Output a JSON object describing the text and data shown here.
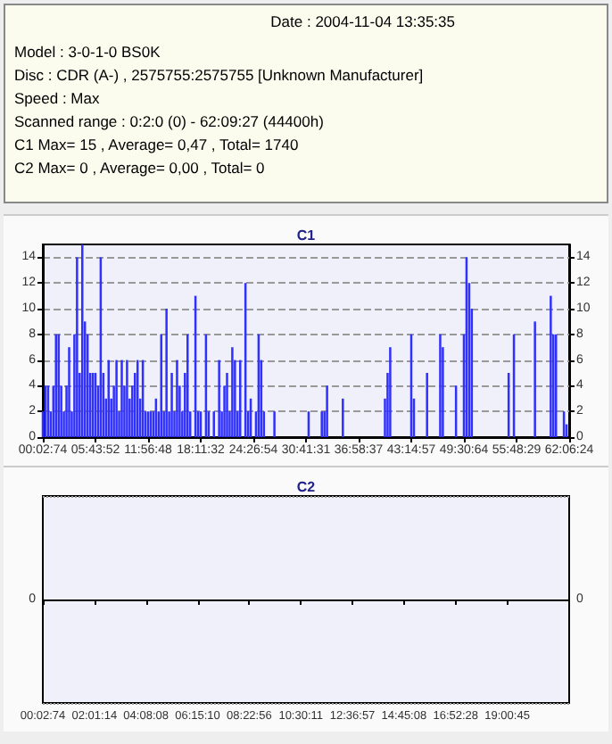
{
  "chart_data": [
    {
      "type": "other",
      "annotations": [
        "Date : 2004-11-04 13:35:35",
        "Model : 3-0-1-0 BS0K",
        "Disc : CDR (A-) , 2575755:2575755 [Unknown Manufacturer]",
        "Speed : Max",
        "Scanned range : 0:2:0 (0) - 62:09:27 (44400h)",
        "C1 Max= 15 , Average= 0,47 , Total= 1740",
        "C2 Max= 0 , Average= 0,00 , Total= 0"
      ]
    },
    {
      "type": "bar",
      "title": "C1",
      "color": "#3030ff",
      "grid": "y",
      "ylim": [
        0,
        15
      ],
      "yticks": [
        0,
        2,
        4,
        6,
        8,
        10,
        12,
        14
      ],
      "y2lim": [
        0,
        15
      ],
      "y2ticks": [
        0,
        2,
        4,
        6,
        8,
        10,
        12,
        14
      ],
      "categories": [
        "00:02:74",
        null,
        null,
        null,
        null,
        null,
        null,
        null,
        null,
        null,
        null,
        null,
        null,
        null,
        null,
        null,
        null,
        null,
        null,
        null,
        "05:43:52",
        null,
        null,
        null,
        null,
        null,
        null,
        null,
        null,
        null,
        null,
        null,
        null,
        null,
        null,
        null,
        null,
        null,
        null,
        null,
        "11:56:48",
        null,
        null,
        null,
        null,
        null,
        null,
        null,
        null,
        null,
        null,
        null,
        null,
        null,
        null,
        null,
        null,
        null,
        null,
        null,
        "18:11:32",
        null,
        null,
        null,
        null,
        null,
        null,
        null,
        null,
        null,
        null,
        null,
        null,
        null,
        null,
        null,
        null,
        null,
        null,
        null,
        "24:26:54",
        null,
        null,
        null,
        null,
        null,
        null,
        null,
        null,
        null,
        null,
        null,
        null,
        null,
        null,
        null,
        null,
        null,
        null,
        null,
        "30:41:31",
        null,
        null,
        null,
        null,
        null,
        null,
        null,
        null,
        null,
        null,
        null,
        null,
        null,
        null,
        null,
        null,
        null,
        null,
        null,
        "36:58:37",
        null,
        null,
        null,
        null,
        null,
        null,
        null,
        null,
        null,
        null,
        null,
        null,
        null,
        null,
        null,
        null,
        null,
        null,
        null,
        "43:14:57",
        null,
        null,
        null,
        null,
        null,
        null,
        null,
        null,
        null,
        null,
        null,
        null,
        null,
        null,
        null,
        null,
        null,
        null,
        null,
        "49:30:64",
        null,
        null,
        null,
        null,
        null,
        null,
        null,
        null,
        null,
        null,
        null,
        null,
        null,
        null,
        null,
        null,
        null,
        null,
        null,
        "55:48:29",
        null,
        null,
        null,
        null,
        null,
        null,
        null,
        null,
        null,
        null,
        null,
        null,
        null,
        null,
        null,
        null,
        null,
        null,
        null,
        "62:06:24"
      ],
      "values": [
        2,
        4,
        4,
        2,
        4,
        8,
        8,
        4,
        2,
        4,
        7,
        2,
        8,
        14,
        5,
        15,
        9,
        8,
        5,
        5,
        5,
        4,
        14,
        5,
        3,
        6,
        3,
        4,
        6,
        2,
        6,
        4,
        6,
        3,
        4,
        5,
        6,
        3,
        6,
        2,
        2,
        2,
        2,
        3,
        2,
        8,
        2,
        10,
        2,
        5,
        2,
        6,
        4,
        2,
        5,
        8,
        2,
        0,
        11,
        2,
        2,
        0,
        8,
        2,
        0,
        2,
        0,
        6,
        2,
        4,
        5,
        2,
        7,
        6,
        2,
        6,
        0,
        12,
        2,
        3,
        0,
        2,
        8,
        6,
        2,
        0,
        0,
        0,
        2,
        0,
        0,
        0,
        0,
        0,
        0,
        0,
        0,
        0,
        0,
        0,
        0,
        2,
        0,
        0,
        0,
        0,
        2,
        2,
        4,
        0,
        0,
        0,
        0,
        0,
        3,
        0,
        0,
        0,
        0,
        0,
        0,
        0,
        0,
        0,
        0,
        0,
        0,
        0,
        0,
        0,
        3,
        5,
        7,
        0,
        0,
        0,
        0,
        0,
        0,
        0,
        8,
        3,
        0,
        0,
        0,
        0,
        5,
        0,
        0,
        0,
        0,
        8,
        7,
        0,
        0,
        0,
        0,
        4,
        0,
        0,
        8,
        14,
        12,
        10,
        0,
        0,
        0,
        0,
        0,
        0,
        0,
        0,
        0,
        0,
        0,
        0,
        0,
        5,
        0,
        8,
        0,
        0,
        0,
        0,
        0,
        0,
        0,
        9,
        0,
        0,
        0,
        0,
        0,
        11,
        8,
        8,
        0,
        0,
        2,
        1,
        0
      ]
    },
    {
      "type": "other",
      "title": "C2",
      "annotations": [
        "0",
        "0"
      ],
      "categories": [
        "00:02:74",
        null,
        null,
        null,
        null,
        "02:01:14",
        null,
        null,
        null,
        null,
        "04:08:08",
        null,
        null,
        null,
        null,
        "06:15:10",
        null,
        null,
        null,
        null,
        "08:22:56",
        null,
        null,
        null,
        null,
        "10:30:11",
        null,
        null,
        null,
        null,
        "12:36:57",
        null,
        null,
        null,
        null,
        "14:45:08",
        null,
        null,
        null,
        null,
        "16:52:28",
        null,
        null,
        null,
        null,
        "19:00:45",
        null,
        null,
        null,
        null,
        null,
        null
      ]
    }
  ]
}
